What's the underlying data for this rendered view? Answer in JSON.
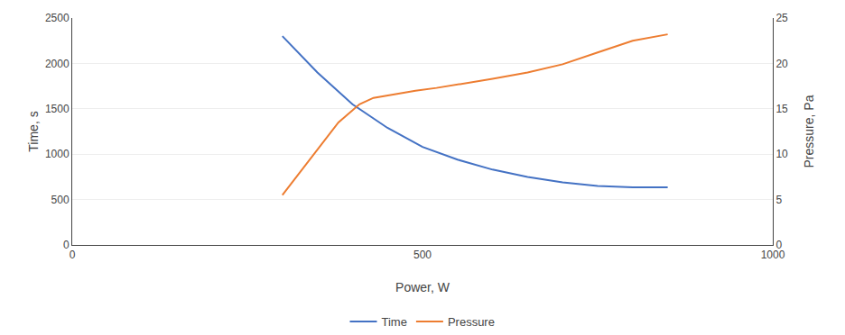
{
  "chart_data": {
    "type": "line",
    "xlabel": "Power, W",
    "ylabel": "Time, s",
    "y2label": "Pressure, Pa",
    "series": [
      {
        "name": "Time",
        "color": "#4472C4",
        "x": [
          300,
          350,
          400,
          450,
          500,
          550,
          600,
          650,
          700,
          750,
          800,
          850
        ],
        "values": [
          2300,
          1900,
          1550,
          1290,
          1080,
          940,
          830,
          750,
          690,
          650,
          635,
          635
        ]
      },
      {
        "name": "Pressure",
        "color": "#ED7D31",
        "axis": "y2",
        "x": [
          300,
          320,
          350,
          380,
          410,
          430,
          460,
          490,
          520,
          560,
          600,
          650,
          700,
          750,
          800,
          850
        ],
        "values": [
          5.5,
          7.5,
          10.5,
          13.5,
          15.5,
          16.2,
          16.6,
          17.0,
          17.3,
          17.8,
          18.3,
          19.0,
          19.9,
          21.2,
          22.5,
          23.2
        ]
      }
    ],
    "xlim": [
      0,
      1000
    ],
    "xticks": [
      0,
      500,
      1000
    ],
    "ylim": [
      0,
      2500
    ],
    "yticks": [
      0,
      500,
      1000,
      1500,
      2000,
      2500
    ],
    "y2lim": [
      0,
      25
    ],
    "y2ticks": [
      0,
      5,
      10,
      15,
      20,
      25
    ],
    "grid": "y",
    "legend": "bottom"
  }
}
